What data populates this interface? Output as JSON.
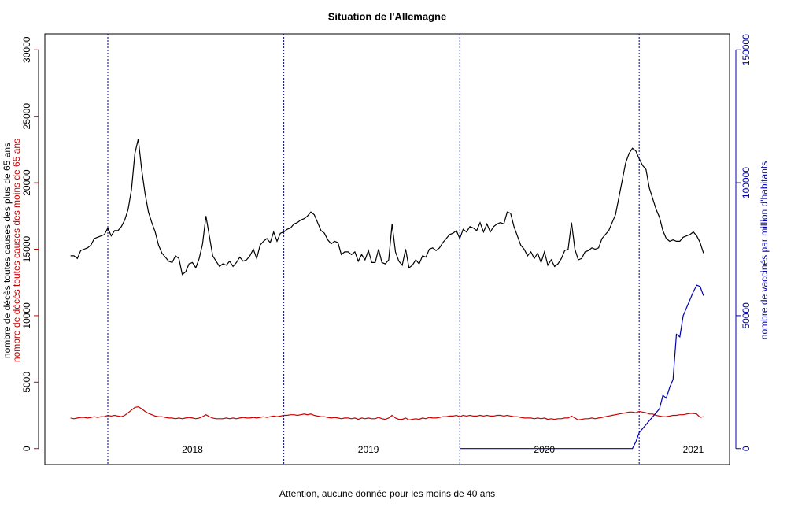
{
  "chart_data": {
    "type": "line",
    "title": "Situation de l'Allemagne",
    "note": "Attention, aucune donnée pour les moins de 40 ans",
    "ylabels": [
      {
        "text": "nombre de décès toutes causes des plus de 65 ans",
        "color": "#000000"
      },
      {
        "text": "nombre de décès toutes causes des moins de 65 ans",
        "color": "#cc0000"
      }
    ],
    "y2label": "nombre de vaccinés par million d'habitants",
    "xlim": [
      -18.6,
      183.7
    ],
    "ylim": [
      -1200,
      31200
    ],
    "yticks": [
      0,
      5000,
      10000,
      15000,
      20000,
      25000,
      30000
    ],
    "y2lim": [
      -6000,
      156000
    ],
    "y2ticks": [
      0,
      50000,
      100000,
      150000
    ],
    "vlines": [
      0,
      52,
      104,
      157
    ],
    "annotations": [
      {
        "text": "2018",
        "x": 25
      },
      {
        "text": "2019",
        "x": 77
      },
      {
        "text": "2020",
        "x": 129
      },
      {
        "text": "2021",
        "x": 173
      }
    ],
    "x": [
      -11,
      -10,
      -9,
      -8,
      -7,
      -6,
      -5,
      -4,
      -3,
      -2,
      -1,
      0,
      1,
      2,
      3,
      4,
      5,
      6,
      7,
      8,
      9,
      10,
      11,
      12,
      13,
      14,
      15,
      16,
      17,
      18,
      19,
      20,
      21,
      22,
      23,
      24,
      25,
      26,
      27,
      28,
      29,
      30,
      31,
      32,
      33,
      34,
      35,
      36,
      37,
      38,
      39,
      40,
      41,
      42,
      43,
      44,
      45,
      46,
      47,
      48,
      49,
      50,
      51,
      52,
      53,
      54,
      55,
      56,
      57,
      58,
      59,
      60,
      61,
      62,
      63,
      64,
      65,
      66,
      67,
      68,
      69,
      70,
      71,
      72,
      73,
      74,
      75,
      76,
      77,
      78,
      79,
      80,
      81,
      82,
      83,
      84,
      85,
      86,
      87,
      88,
      89,
      90,
      91,
      92,
      93,
      94,
      95,
      96,
      97,
      98,
      99,
      100,
      101,
      102,
      103,
      104,
      105,
      106,
      107,
      108,
      109,
      110,
      111,
      112,
      113,
      114,
      115,
      116,
      117,
      118,
      119,
      120,
      121,
      122,
      123,
      124,
      125,
      126,
      127,
      128,
      129,
      130,
      131,
      132,
      133,
      134,
      135,
      136,
      137,
      138,
      139,
      140,
      141,
      142,
      143,
      144,
      145,
      146,
      147,
      148,
      149,
      150,
      151,
      152,
      153,
      154,
      155,
      156,
      157,
      158,
      159,
      160,
      161,
      162,
      163,
      164,
      165,
      166,
      167,
      168,
      169,
      170,
      171,
      172,
      173,
      174,
      175,
      176
    ],
    "series": [
      {
        "name": "plus de 65 ans",
        "color": "#000000",
        "values": [
          14500,
          14500,
          14300,
          14900,
          15000,
          15100,
          15300,
          15800,
          15900,
          16000,
          16100,
          16600,
          16000,
          16400,
          16400,
          16700,
          17200,
          18000,
          19500,
          22200,
          23300,
          21000,
          19200,
          17800,
          17000,
          16300,
          15300,
          14700,
          14400,
          14100,
          14000,
          14500,
          14300,
          13100,
          13300,
          13900,
          14000,
          13600,
          14300,
          15400,
          17500,
          16000,
          14500,
          14100,
          13700,
          13900,
          13800,
          14100,
          13700,
          14000,
          14400,
          14100,
          14200,
          14500,
          15000,
          14300,
          15300,
          15600,
          15800,
          15500,
          16300,
          15600,
          16200,
          16300,
          16500,
          16600,
          16900,
          17000,
          17200,
          17300,
          17500,
          17800,
          17600,
          17000,
          16400,
          16200,
          15700,
          15400,
          15600,
          15500,
          14600,
          14800,
          14800,
          14600,
          14800,
          14100,
          14600,
          14200,
          14900,
          14000,
          14000,
          15000,
          14000,
          13900,
          14200,
          16900,
          14800,
          14100,
          13800,
          15000,
          13600,
          13800,
          14200,
          13900,
          14500,
          14400,
          15000,
          15100,
          14900,
          15100,
          15500,
          15800,
          16100,
          16200,
          16400,
          15800,
          16500,
          16300,
          16700,
          16600,
          16400,
          17000,
          16300,
          16900,
          16300,
          16700,
          16900,
          17000,
          16900,
          17800,
          17700,
          16700,
          16000,
          15300,
          15000,
          14500,
          14800,
          14300,
          14700,
          14000,
          14800,
          13800,
          14200,
          13700,
          13900,
          14300,
          14900,
          15000,
          17000,
          15000,
          14200,
          14300,
          14800,
          14900,
          15100,
          15000,
          15100,
          15800,
          16100,
          16400,
          17000,
          17600,
          18900,
          20200,
          21500,
          22200,
          22600,
          22400,
          21800,
          21300,
          21000,
          19600,
          18800,
          18000,
          17400,
          16400,
          15800,
          15600,
          15700,
          15600,
          15600,
          15900,
          16000,
          16100,
          16300,
          16000,
          15500,
          14700
        ]
      },
      {
        "name": "moins de 65 ans",
        "color": "#cc0000",
        "values": [
          2300,
          2250,
          2300,
          2350,
          2350,
          2300,
          2350,
          2400,
          2350,
          2400,
          2400,
          2500,
          2450,
          2500,
          2450,
          2400,
          2500,
          2700,
          2900,
          3100,
          3150,
          3000,
          2800,
          2650,
          2550,
          2450,
          2400,
          2400,
          2350,
          2300,
          2300,
          2250,
          2300,
          2250,
          2300,
          2350,
          2300,
          2250,
          2300,
          2400,
          2550,
          2400,
          2300,
          2250,
          2250,
          2250,
          2300,
          2250,
          2300,
          2250,
          2300,
          2350,
          2300,
          2300,
          2350,
          2300,
          2350,
          2400,
          2350,
          2400,
          2450,
          2400,
          2450,
          2500,
          2500,
          2550,
          2550,
          2500,
          2550,
          2600,
          2550,
          2600,
          2500,
          2450,
          2400,
          2400,
          2350,
          2300,
          2350,
          2300,
          2250,
          2300,
          2300,
          2250,
          2300,
          2200,
          2300,
          2250,
          2300,
          2250,
          2250,
          2350,
          2250,
          2200,
          2300,
          2500,
          2300,
          2200,
          2200,
          2300,
          2150,
          2200,
          2250,
          2200,
          2300,
          2250,
          2350,
          2300,
          2300,
          2350,
          2400,
          2400,
          2450,
          2450,
          2500,
          2400,
          2500,
          2450,
          2500,
          2450,
          2450,
          2500,
          2450,
          2500,
          2450,
          2450,
          2500,
          2500,
          2450,
          2500,
          2450,
          2400,
          2400,
          2350,
          2300,
          2300,
          2300,
          2250,
          2300,
          2250,
          2300,
          2200,
          2250,
          2200,
          2250,
          2250,
          2300,
          2300,
          2450,
          2300,
          2150,
          2200,
          2250,
          2250,
          2300,
          2250,
          2300,
          2350,
          2400,
          2450,
          2500,
          2550,
          2600,
          2650,
          2700,
          2750,
          2750,
          2700,
          2800,
          2750,
          2700,
          2600,
          2600,
          2500,
          2450,
          2400,
          2400,
          2450,
          2500,
          2500,
          2550,
          2550,
          2600,
          2650,
          2650,
          2600,
          2350,
          2400
        ]
      },
      {
        "name": "vaccinés",
        "color": "#0000aa",
        "axis": "y2",
        "values": [
          null,
          null,
          null,
          null,
          null,
          null,
          null,
          null,
          null,
          null,
          null,
          null,
          null,
          null,
          null,
          null,
          null,
          null,
          null,
          null,
          null,
          null,
          null,
          null,
          null,
          null,
          null,
          null,
          null,
          null,
          null,
          null,
          null,
          null,
          null,
          null,
          null,
          null,
          null,
          null,
          null,
          null,
          null,
          null,
          null,
          null,
          null,
          null,
          null,
          null,
          null,
          null,
          null,
          null,
          null,
          null,
          null,
          null,
          null,
          null,
          null,
          null,
          null,
          null,
          null,
          null,
          null,
          null,
          null,
          null,
          null,
          null,
          null,
          null,
          null,
          null,
          null,
          null,
          null,
          null,
          null,
          null,
          null,
          null,
          null,
          null,
          null,
          null,
          null,
          null,
          null,
          null,
          null,
          null,
          null,
          null,
          null,
          null,
          null,
          null,
          null,
          null,
          null,
          null,
          null,
          null,
          null,
          null,
          null,
          null,
          null,
          null,
          null,
          null,
          null,
          0,
          0,
          0,
          0,
          0,
          0,
          0,
          0,
          0,
          0,
          0,
          0,
          0,
          0,
          0,
          0,
          0,
          0,
          0,
          0,
          0,
          0,
          0,
          0,
          0,
          0,
          0,
          0,
          0,
          0,
          0,
          0,
          0,
          0,
          0,
          0,
          0,
          0,
          0,
          0,
          0,
          0,
          0,
          0,
          0,
          0,
          0,
          0,
          0,
          0,
          0,
          0,
          2500,
          6000,
          7500,
          9000,
          10500,
          12000,
          13500,
          15000,
          20000,
          19000,
          23000,
          26000,
          43000,
          42000,
          50000,
          53000,
          56000,
          59000,
          61500,
          61000,
          57500
        ]
      }
    ]
  }
}
